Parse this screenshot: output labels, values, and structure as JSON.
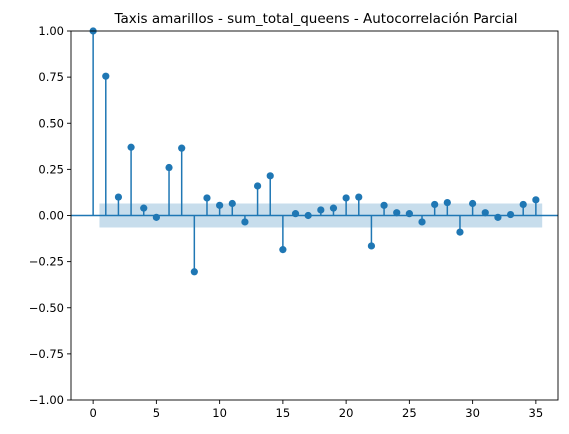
{
  "chart_data": {
    "type": "scatter",
    "subtype": "stem",
    "title": "Taxis amarillos - sum_total_queens - Autocorrelación Parcial",
    "xlabel": "",
    "ylabel": "",
    "xlim": [
      -1.75,
      36.75
    ],
    "ylim": [
      -1.0,
      1.0
    ],
    "x_ticks": [
      0,
      5,
      10,
      15,
      20,
      25,
      30,
      35
    ],
    "x_tick_labels": [
      "0",
      "5",
      "10",
      "15",
      "20",
      "25",
      "30",
      "35"
    ],
    "y_ticks": [
      -1.0,
      -0.75,
      -0.5,
      -0.25,
      0.0,
      0.25,
      0.5,
      0.75,
      1.0
    ],
    "y_tick_labels": [
      "−1.00",
      "−0.75",
      "−0.50",
      "−0.25",
      "0.00",
      "0.25",
      "0.50",
      "0.75",
      "1.00"
    ],
    "grid": false,
    "x": [
      0,
      1,
      2,
      3,
      4,
      5,
      6,
      7,
      8,
      9,
      10,
      11,
      12,
      13,
      14,
      15,
      16,
      17,
      18,
      19,
      20,
      21,
      22,
      23,
      24,
      25,
      26,
      27,
      28,
      29,
      30,
      31,
      32,
      33,
      34,
      35
    ],
    "values": [
      1.0,
      0.755,
      0.1,
      0.37,
      0.04,
      -0.01,
      0.26,
      0.365,
      -0.305,
      0.095,
      0.055,
      0.065,
      -0.035,
      0.16,
      0.215,
      -0.185,
      0.01,
      0.0,
      0.03,
      0.04,
      0.095,
      0.1,
      -0.165,
      0.055,
      0.015,
      0.01,
      -0.035,
      0.06,
      0.07,
      -0.09,
      0.065,
      0.015,
      -0.01,
      0.005,
      0.06,
      0.085
    ],
    "confidence_band": {
      "x_range": [
        0.5,
        35.5
      ],
      "upper": 0.065,
      "lower": -0.065
    },
    "colors": {
      "stem": "#1f77b4",
      "band": "#1f77b4",
      "band_opacity": 0.25
    }
  }
}
